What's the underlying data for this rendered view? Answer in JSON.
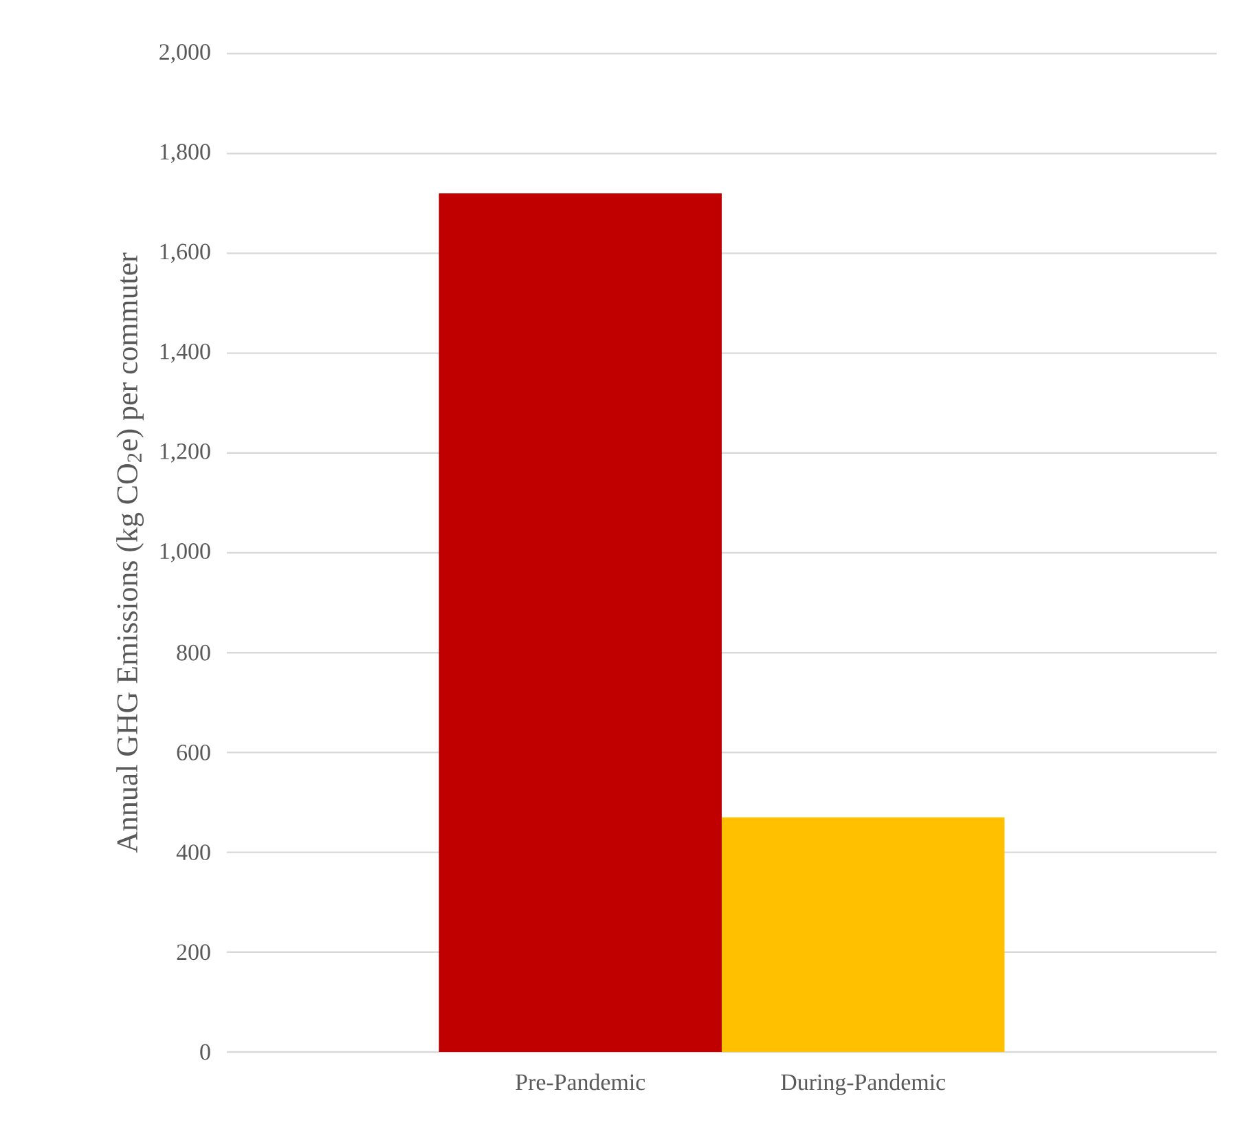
{
  "chart_data": {
    "type": "bar",
    "ylabel": "Annual GHG Emissions (kg CO$_{2}$e) per commuter",
    "categories": [
      "Pre-Pandemic",
      "During-Pandemic"
    ],
    "values": [
      1720,
      470
    ],
    "colors": [
      "#c00000",
      "#ffc000"
    ],
    "ylim": [
      0,
      2000
    ],
    "yticks": [
      {
        "value": 0,
        "label": "0"
      },
      {
        "value": 200,
        "label": "200"
      },
      {
        "value": 400,
        "label": "400"
      },
      {
        "value": 600,
        "label": "600"
      },
      {
        "value": 800,
        "label": "800"
      },
      {
        "value": 1000,
        "label": "1,000"
      },
      {
        "value": 1200,
        "label": "1,200"
      },
      {
        "value": 1400,
        "label": "1,400"
      },
      {
        "value": 1600,
        "label": "1,600"
      },
      {
        "value": 1800,
        "label": "1,800"
      },
      {
        "value": 2000,
        "label": "2,000"
      }
    ],
    "grid": "y"
  }
}
